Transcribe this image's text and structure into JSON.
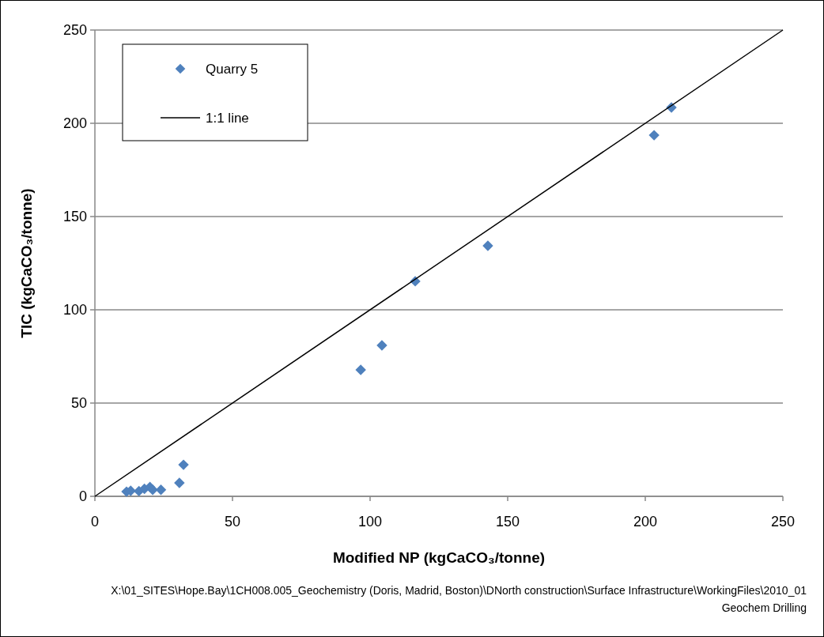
{
  "chart_data": {
    "type": "scatter",
    "xlabel": "Modified NP (kgCaCO₃/tonne)",
    "ylabel": "TIC  (kgCaCO₃/tonne)",
    "xlim": [
      0,
      250
    ],
    "ylim": [
      0,
      250
    ],
    "xticks": [
      0,
      50,
      100,
      150,
      200,
      250
    ],
    "yticks": [
      0,
      50,
      100,
      150,
      200,
      250
    ],
    "grid": "y",
    "legend": "top left",
    "marker": "diamond",
    "series": [
      {
        "name": "Quarry 5",
        "color": "#4f81bd",
        "x": [
          11.5,
          13,
          16,
          18,
          20,
          21,
          24,
          30.7,
          32.2,
          96.6,
          104.3,
          116.4,
          142.8,
          203.2,
          209.5
        ],
        "values": [
          2.5,
          3,
          2.8,
          4,
          5,
          3.5,
          3.5,
          7.2,
          16.9,
          67.8,
          80.9,
          115.3,
          134.3,
          193.6,
          208.5
        ]
      },
      {
        "name": "1:1 line",
        "type": "line",
        "color": "#000000",
        "marker": "none",
        "x": [
          0,
          250
        ],
        "values": [
          0,
          250
        ]
      }
    ],
    "annotations": [
      "X:\\01_SITES\\Hope.Bay\\1CH008.005_Geochemistry (Doris, Madrid, Boston)\\DNorth construction\\Surface Infrastructure\\WorkingFiles\\2010_01 Geochem Drilling"
    ]
  }
}
